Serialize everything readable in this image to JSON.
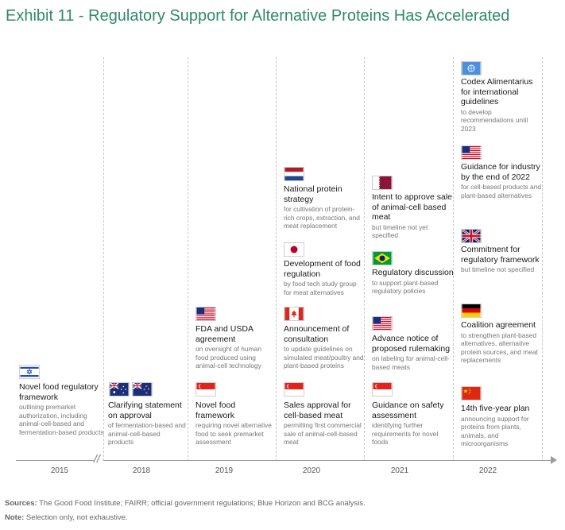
{
  "title": "Exhibit 11 - Regulatory Support for Alternative Proteins Has Accelerated",
  "axis_break": "//",
  "years": [
    "2015",
    "2018",
    "2019",
    "2020",
    "2021",
    "2022"
  ],
  "items": {
    "y2015_israel": {
      "flag": "israel-flag-icon",
      "title": "Novel food regulatory framework",
      "sub": "outlining premarket authorization, including animal-cell-based and fermentation-based products"
    },
    "y2018_aus_nz": {
      "flag": "australia-new-zealand-flag-icon",
      "title": "Clarifying statement on approval",
      "sub": "of fermentation-based and animal-cell-based products"
    },
    "y2019_usa": {
      "flag": "usa-flag-icon",
      "title": "FDA and USDA agreement",
      "sub": "on oversight of human food produced using animal-cell technology"
    },
    "y2019_singapore": {
      "flag": "singapore-flag-icon",
      "title": "Novel food framework",
      "sub": "requiring novel alternative food to seek premarket assessment"
    },
    "y2020_netherlands": {
      "flag": "netherlands-flag-icon",
      "title": "National protein strategy",
      "sub": "for cultivation of protein-rich crops, extraction, and meat replacement"
    },
    "y2020_japan": {
      "flag": "japan-flag-icon",
      "title": "Development of food regulation",
      "sub": "by food tech study group for meat alternatives"
    },
    "y2020_canada": {
      "flag": "canada-flag-icon",
      "title": "Announcement of consultation",
      "sub": "to update guidelines on simulated meat/poultry and plant-based proteins"
    },
    "y2020_singapore": {
      "flag": "singapore-flag-icon",
      "title": "Sales approval for cell-based meat",
      "sub": "permitting first commercial sale of animal-cell-based meat"
    },
    "y2021_qatar": {
      "flag": "qatar-flag-icon",
      "title": "Intent to approve sale of animal-cell based meat",
      "sub": "but timeline not yet specified"
    },
    "y2021_brazil": {
      "flag": "brazil-flag-icon",
      "title": "Regulatory discussion",
      "sub": "to support plant-based regulatory policies"
    },
    "y2021_usa": {
      "flag": "usa-flag-icon",
      "title": "Advance notice of proposed rulemaking",
      "sub": "on labeling for animal-cell-based meats"
    },
    "y2021_singapore": {
      "flag": "singapore-flag-icon",
      "title": "Guidance on safety assessment",
      "sub": "identifying further requirements for novel foods"
    },
    "y2022_un": {
      "flag": "un-flag-icon",
      "title": "Codex Alimentarius for international guidelines",
      "sub": "to develop recommendations until 2023"
    },
    "y2022_usa": {
      "flag": "usa-flag-icon",
      "title": "Guidance for industry by the end of 2022",
      "sub": "for cell-based products and plant-based alternatives"
    },
    "y2022_uk": {
      "flag": "uk-flag-icon",
      "title": "Commitment for regulatory framework",
      "sub": "but timeline not specified"
    },
    "y2022_germany": {
      "flag": "germany-flag-icon",
      "title": "Coalition agreement",
      "sub": "to strengthen plant-based alternatives, alternative protein sources, and meat replacements"
    },
    "y2022_china": {
      "flag": "china-flag-icon",
      "title": "14th five-year plan",
      "sub": "announcing support for proteins from plants, animals, and microorganisms"
    }
  },
  "footer": {
    "sources_label": "Sources:",
    "sources_text": " The Good Food Institute; FAIRR; official government regulations; Blue Horizon and BCG analysis.",
    "note_label": "Note:",
    "note_text": " Selection only, not exhaustive."
  },
  "colors": {
    "title": "#2e8a6b",
    "axis": "#9a9a9a",
    "gridline": "#c9c9c9"
  }
}
